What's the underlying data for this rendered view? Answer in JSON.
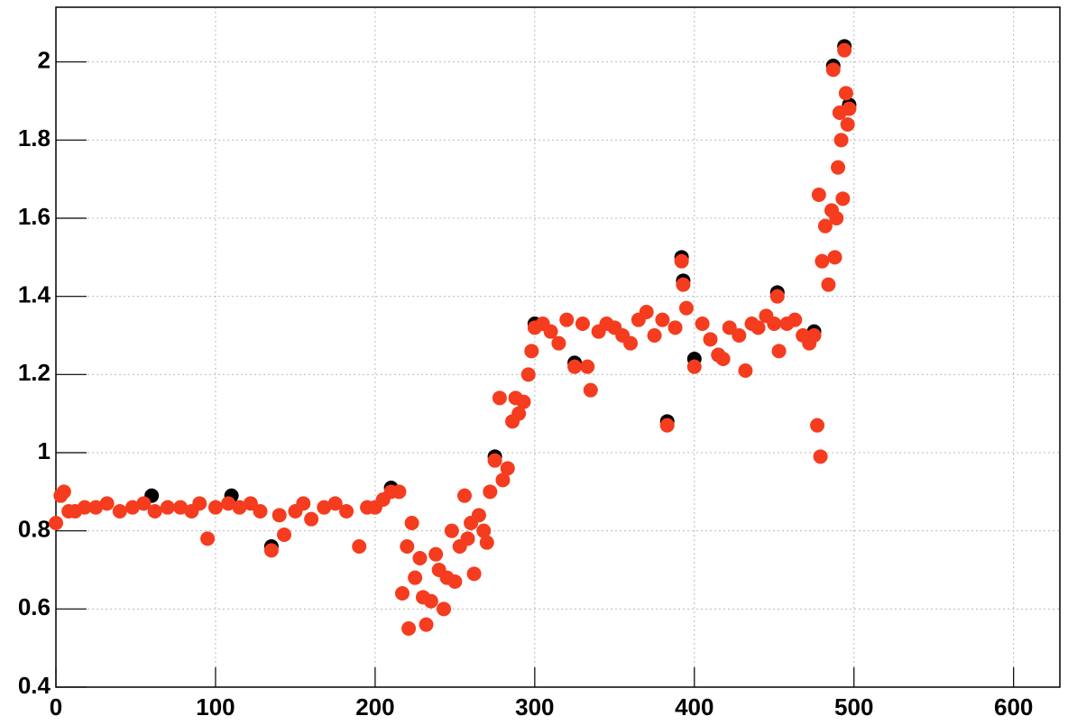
{
  "chart_data": {
    "type": "scatter",
    "series": [
      {
        "color": "#000000",
        "x": [
          60,
          110,
          135,
          210,
          275,
          300,
          325,
          383,
          392,
          393,
          400,
          415,
          452,
          475,
          487,
          494,
          497
        ],
        "values": [
          0.89,
          0.89,
          0.76,
          0.91,
          0.99,
          1.33,
          1.23,
          1.08,
          1.5,
          1.44,
          1.24,
          1.25,
          1.41,
          1.31,
          1.99,
          2.04,
          1.89
        ]
      },
      {
        "color": "#f53c1e",
        "x": [
          0,
          3,
          5,
          8,
          12,
          18,
          25,
          32,
          40,
          48,
          55,
          62,
          70,
          78,
          85,
          90,
          95,
          100,
          108,
          115,
          122,
          128,
          135,
          140,
          143,
          150,
          155,
          160,
          168,
          175,
          182,
          190,
          195,
          200,
          205,
          210,
          215,
          217,
          220,
          221,
          223,
          225,
          228,
          230,
          232,
          235,
          238,
          240,
          243,
          245,
          248,
          250,
          253,
          256,
          258,
          260,
          262,
          265,
          268,
          270,
          272,
          275,
          278,
          280,
          283,
          286,
          288,
          290,
          293,
          296,
          298,
          300,
          305,
          310,
          315,
          320,
          325,
          330,
          333,
          335,
          340,
          345,
          350,
          355,
          360,
          365,
          370,
          375,
          380,
          383,
          388,
          392,
          393,
          395,
          400,
          405,
          410,
          415,
          418,
          422,
          428,
          432,
          436,
          440,
          445,
          450,
          452,
          453,
          458,
          463,
          468,
          472,
          475,
          477,
          478,
          479,
          480,
          482,
          484,
          486,
          487,
          488,
          489,
          490,
          491,
          492,
          493,
          494,
          495,
          496,
          497
        ],
        "values": [
          0.82,
          0.89,
          0.9,
          0.85,
          0.85,
          0.86,
          0.86,
          0.87,
          0.85,
          0.86,
          0.87,
          0.85,
          0.86,
          0.86,
          0.85,
          0.87,
          0.78,
          0.86,
          0.87,
          0.86,
          0.87,
          0.85,
          0.75,
          0.84,
          0.79,
          0.85,
          0.87,
          0.83,
          0.86,
          0.87,
          0.85,
          0.76,
          0.86,
          0.86,
          0.88,
          0.9,
          0.9,
          0.64,
          0.76,
          0.55,
          0.82,
          0.68,
          0.73,
          0.63,
          0.56,
          0.62,
          0.74,
          0.7,
          0.6,
          0.68,
          0.8,
          0.67,
          0.76,
          0.89,
          0.78,
          0.82,
          0.69,
          0.84,
          0.8,
          0.77,
          0.9,
          0.98,
          1.14,
          0.93,
          0.96,
          1.08,
          1.14,
          1.1,
          1.13,
          1.2,
          1.26,
          1.32,
          1.33,
          1.31,
          1.28,
          1.34,
          1.22,
          1.33,
          1.22,
          1.16,
          1.31,
          1.33,
          1.32,
          1.3,
          1.28,
          1.34,
          1.36,
          1.3,
          1.34,
          1.07,
          1.32,
          1.49,
          1.43,
          1.37,
          1.22,
          1.33,
          1.29,
          1.25,
          1.24,
          1.32,
          1.3,
          1.21,
          1.33,
          1.32,
          1.35,
          1.33,
          1.4,
          1.26,
          1.33,
          1.34,
          1.3,
          1.28,
          1.3,
          1.07,
          1.66,
          0.99,
          1.49,
          1.58,
          1.43,
          1.62,
          1.98,
          1.5,
          1.6,
          1.73,
          1.87,
          1.8,
          1.65,
          2.03,
          1.92,
          1.84,
          1.88
        ]
      }
    ],
    "xlim": [
      0,
      629
    ],
    "xticks": [
      0,
      100,
      200,
      300,
      400,
      500,
      600
    ],
    "ylim": [
      0.4,
      2.14
    ],
    "yticks": [
      0.4,
      0.6,
      0.8,
      1,
      1.2,
      1.4,
      1.6,
      1.8,
      2
    ],
    "grid": true
  }
}
